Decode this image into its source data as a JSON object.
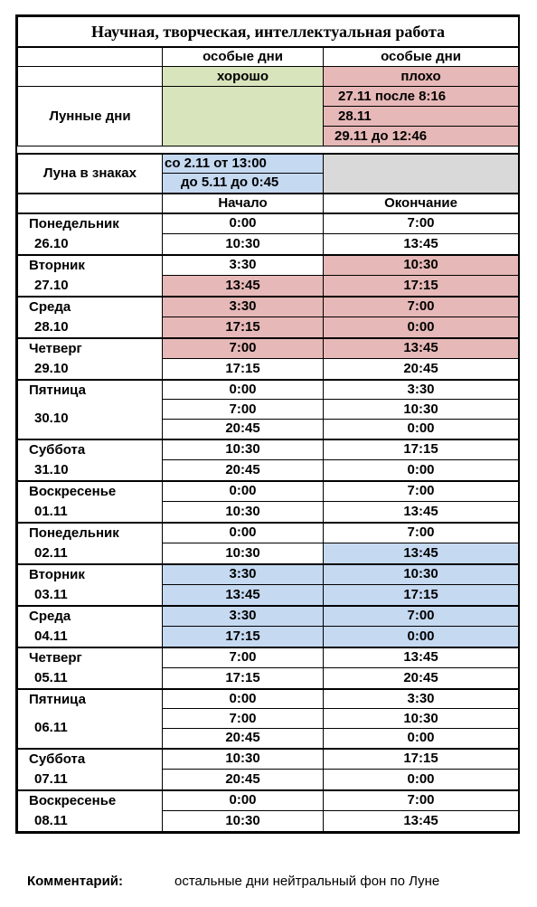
{
  "title": "Научная, творческая, интеллектуальная работа",
  "special": {
    "good_header": "особые дни",
    "bad_header": "особые дни",
    "good_label": "хорошо",
    "bad_label": "плохо"
  },
  "lunar": {
    "label": "Лунные дни",
    "bad_days": [
      "27.11 после 8:16",
      "28.11",
      "29.11 до 12:46"
    ]
  },
  "moon_signs": {
    "label": "Луна в знаках",
    "ranges": [
      "со 2.11 от 13:00",
      "до 5.11 до 0:45"
    ]
  },
  "schedule_headers": {
    "start": "Начало",
    "end": "Окончание"
  },
  "days": [
    {
      "name": "Понедельник",
      "date": "26.10",
      "slots": [
        {
          "start": "0:00",
          "end": "7:00"
        },
        {
          "start": "10:30",
          "end": "13:45"
        }
      ]
    },
    {
      "name": "Вторник",
      "date": "27.10",
      "slots": [
        {
          "start": "3:30",
          "end": "10:30",
          "end_color": "pink"
        },
        {
          "start": "13:45",
          "end": "17:15",
          "start_color": "pink",
          "end_color": "pink"
        }
      ]
    },
    {
      "name": "Среда",
      "date": "28.10",
      "slots": [
        {
          "start": "3:30",
          "end": "7:00",
          "start_color": "pink",
          "end_color": "pink"
        },
        {
          "start": "17:15",
          "end": "0:00",
          "start_color": "pink",
          "end_color": "pink"
        }
      ]
    },
    {
      "name": "Четверг",
      "date": "29.10",
      "slots": [
        {
          "start": "7:00",
          "end": "13:45",
          "start_color": "pink",
          "end_color": "pink"
        },
        {
          "start": "17:15",
          "end": "20:45"
        }
      ]
    },
    {
      "name": "Пятница",
      "date": "30.10",
      "slots": [
        {
          "start": "0:00",
          "end": "3:30"
        },
        {
          "start": "7:00",
          "end": "10:30"
        },
        {
          "start": "20:45",
          "end": "0:00"
        }
      ]
    },
    {
      "name": "Суббота",
      "date": "31.10",
      "slots": [
        {
          "start": "10:30",
          "end": "17:15"
        },
        {
          "start": "20:45",
          "end": "0:00"
        }
      ]
    },
    {
      "name": "Воскресенье",
      "date": "01.11",
      "slots": [
        {
          "start": "0:00",
          "end": "7:00"
        },
        {
          "start": "10:30",
          "end": "13:45"
        }
      ]
    },
    {
      "name": "Понедельник",
      "date": "02.11",
      "slots": [
        {
          "start": "0:00",
          "end": "7:00"
        },
        {
          "start": "10:30",
          "end": "13:45",
          "end_color": "blue"
        }
      ]
    },
    {
      "name": "Вторник",
      "date": "03.11",
      "slots": [
        {
          "start": "3:30",
          "end": "10:30",
          "start_color": "blue",
          "end_color": "blue"
        },
        {
          "start": "13:45",
          "end": "17:15",
          "start_color": "blue",
          "end_color": "blue"
        }
      ]
    },
    {
      "name": "Среда",
      "date": "04.11",
      "slots": [
        {
          "start": "3:30",
          "end": "7:00",
          "start_color": "blue",
          "end_color": "blue"
        },
        {
          "start": "17:15",
          "end": "0:00",
          "start_color": "blue",
          "end_color": "blue"
        }
      ]
    },
    {
      "name": "Четверг",
      "date": "05.11",
      "slots": [
        {
          "start": "7:00",
          "end": "13:45"
        },
        {
          "start": "17:15",
          "end": "20:45"
        }
      ]
    },
    {
      "name": "Пятница",
      "date": "06.11",
      "slots": [
        {
          "start": "0:00",
          "end": "3:30"
        },
        {
          "start": "7:00",
          "end": "10:30"
        },
        {
          "start": "20:45",
          "end": "0:00"
        }
      ]
    },
    {
      "name": "Суббота",
      "date": "07.11",
      "slots": [
        {
          "start": "10:30",
          "end": "17:15"
        },
        {
          "start": "20:45",
          "end": "0:00"
        }
      ]
    },
    {
      "name": "Воскресенье",
      "date": "08.11",
      "slots": [
        {
          "start": "0:00",
          "end": "7:00"
        },
        {
          "start": "10:30",
          "end": "13:45"
        }
      ]
    }
  ],
  "comment": {
    "label": "Комментарий:",
    "text": "остальные дни нейтральный фон по Луне"
  },
  "colors": {
    "good": "#d8e4bc",
    "bad": "#e6b8b7",
    "moon": "#c5d9f1",
    "neutral": "#d9d9d9"
  }
}
